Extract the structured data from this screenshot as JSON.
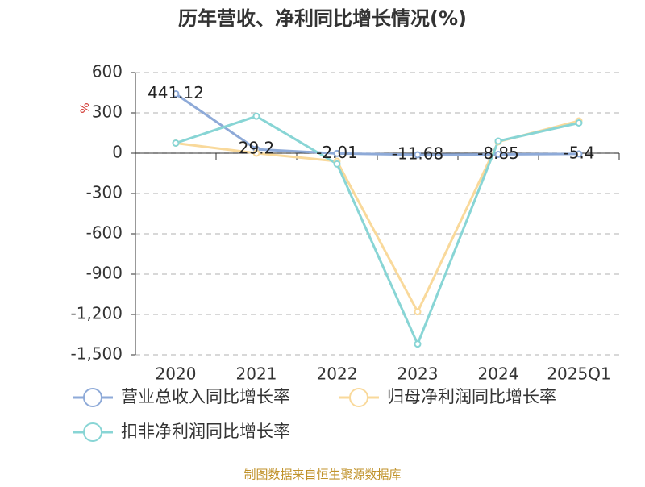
{
  "chart_data": {
    "type": "line",
    "title": "历年营收、净利同比增长情况(%)",
    "y_label": "%",
    "categories": [
      "2020",
      "2021",
      "2022",
      "2023",
      "2024",
      "2025Q1"
    ],
    "series": [
      {
        "name": "营业总收入同比增长率",
        "color": "#8eaad8",
        "values": [
          441.12,
          29.2,
          -2.01,
          -11.68,
          -8.85,
          -5.4
        ],
        "show_labels": true
      },
      {
        "name": "归母净利润同比增长率",
        "color": "#f9d99b",
        "values": [
          75,
          0,
          -60,
          -1180,
          85,
          240
        ]
      },
      {
        "name": "扣非净利润同比增长率",
        "color": "#88d5d5",
        "values": [
          75,
          275,
          -80,
          -1420,
          90,
          225
        ]
      }
    ],
    "ylim": [
      -1500,
      600
    ],
    "yticks": [
      {
        "value": -1500,
        "label": "-1,500"
      },
      {
        "value": -1200,
        "label": "-1,200"
      },
      -900,
      -600,
      -300,
      0,
      300,
      600
    ],
    "grid": true,
    "source": "制图数据来自恒生聚源数据库"
  }
}
